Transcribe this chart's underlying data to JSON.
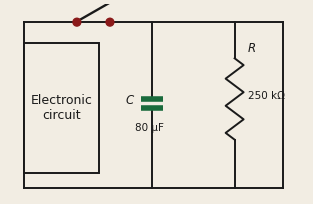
{
  "bg_color": "#f2ede3",
  "line_color": "#1a1a1a",
  "component_color": "#1a6b3c",
  "switch_dot_color": "#8b1a1a",
  "box_label": "Electronic\ncircuit",
  "cap_label": "C",
  "cap_value": "80 μF",
  "res_label": "R",
  "res_value": "250 kΩ",
  "label_fontsize": 8.5,
  "small_fontsize": 7.5
}
